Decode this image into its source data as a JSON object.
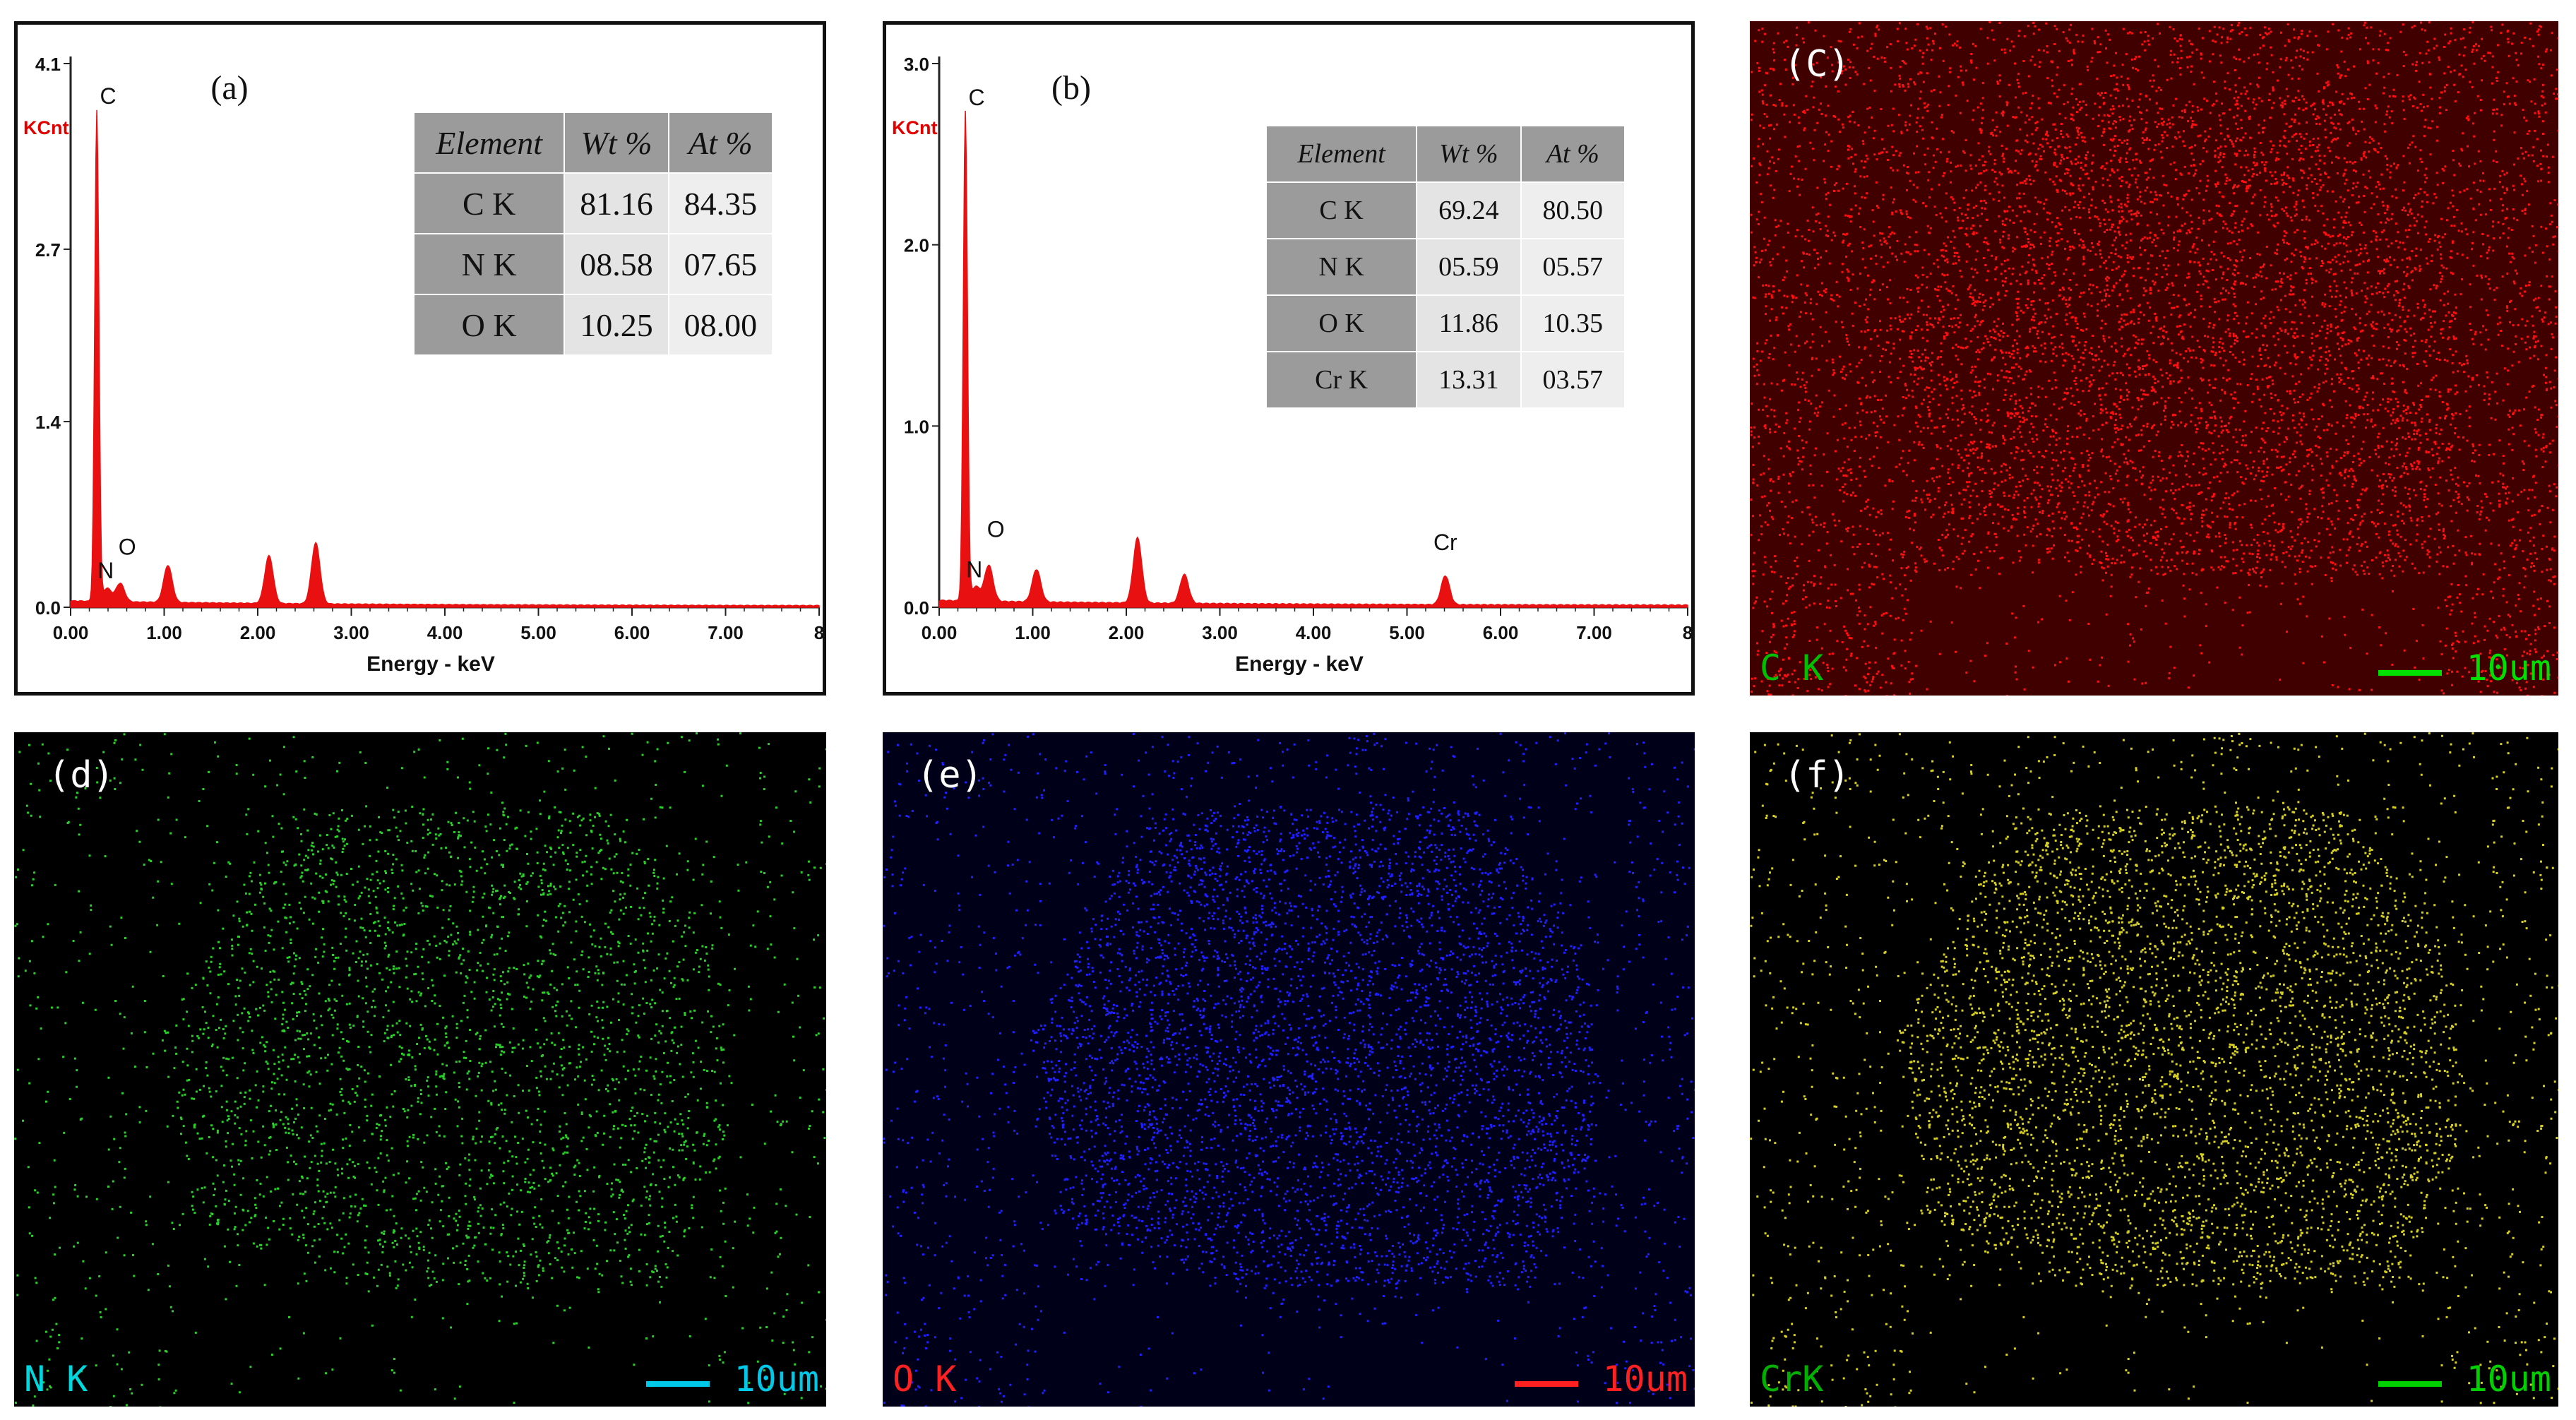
{
  "chart_data": [
    {
      "type": "line",
      "panel_label": "(a)",
      "xlabel": "Energy - keV",
      "ylabel": "KCnt",
      "xlim": [
        0,
        8
      ],
      "ylim": [
        0,
        4.1
      ],
      "x_ticks": [
        "0.00",
        "1.00",
        "2.00",
        "3.00",
        "4.00",
        "5.00",
        "6.00",
        "7.00",
        "8"
      ],
      "y_ticks": [
        {
          "value": 0,
          "label": "0.0"
        },
        {
          "value": 1.4,
          "label": "1.4"
        },
        {
          "value": 2.7,
          "label": "2.7"
        },
        {
          "value": 4.1,
          "label": "4.1"
        }
      ],
      "peaks": [
        {
          "label": "C",
          "x": 0.28,
          "y": 3.7
        },
        {
          "label": "N",
          "x": 0.39,
          "y": 0.1
        },
        {
          "label": "O",
          "x": 0.53,
          "y": 0.14
        },
        {
          "label": "",
          "x": 1.04,
          "y": 0.28
        },
        {
          "label": "",
          "x": 2.12,
          "y": 0.36
        },
        {
          "label": "",
          "x": 2.62,
          "y": 0.46
        }
      ],
      "table": {
        "headers": [
          "Element",
          "Wt %",
          "At %"
        ],
        "rows": [
          [
            "C K",
            "81.16",
            "84.35"
          ],
          [
            "N K",
            "08.58",
            "07.65"
          ],
          [
            "O K",
            "10.25",
            "08.00"
          ]
        ]
      }
    },
    {
      "type": "line",
      "panel_label": "(b)",
      "xlabel": "Energy - keV",
      "ylabel": "KCnt",
      "xlim": [
        0,
        8
      ],
      "ylim": [
        0,
        3.0
      ],
      "x_ticks": [
        "0.00",
        "1.00",
        "2.00",
        "3.00",
        "4.00",
        "5.00",
        "6.00",
        "7.00",
        "8"
      ],
      "y_ticks": [
        {
          "value": 0,
          "label": "0.0"
        },
        {
          "value": 1.0,
          "label": "1.0"
        },
        {
          "value": 2.0,
          "label": "2.0"
        },
        {
          "value": 3.0,
          "label": "3.0"
        }
      ],
      "peaks": [
        {
          "label": "C",
          "x": 0.28,
          "y": 2.7
        },
        {
          "label": "N",
          "x": 0.39,
          "y": 0.08
        },
        {
          "label": "O",
          "x": 0.53,
          "y": 0.2
        },
        {
          "label": "",
          "x": 1.04,
          "y": 0.18
        },
        {
          "label": "",
          "x": 2.12,
          "y": 0.36
        },
        {
          "label": "",
          "x": 2.62,
          "y": 0.16
        },
        {
          "label": "Cr",
          "x": 5.41,
          "y": 0.16
        }
      ],
      "table": {
        "headers": [
          "Element",
          "Wt %",
          "At %"
        ],
        "rows": [
          [
            "C K",
            "69.24",
            "80.50"
          ],
          [
            "N K",
            "05.59",
            "05.57"
          ],
          [
            "O K",
            "11.86",
            "10.35"
          ],
          [
            "Cr K",
            "13.31",
            "03.57"
          ]
        ]
      }
    }
  ],
  "maps": [
    {
      "label": "(C)",
      "element": "C K",
      "scale": "10um",
      "dot_color": "#ff1010",
      "bg_color": "#400000",
      "element_color": "#00c000",
      "scale_color": "#00e000",
      "density": 0.85
    },
    {
      "label": "(d)",
      "element": "N K",
      "scale": "10um",
      "dot_color": "#28d028",
      "bg_color": "#000000",
      "element_color": "#00d8e0",
      "scale_color": "#00c8e8",
      "density": 0.35
    },
    {
      "label": "(e)",
      "element": "O K",
      "scale": "10um",
      "dot_color": "#2020ff",
      "bg_color": "#000018",
      "element_color": "#ff2020",
      "scale_color": "#ff2020",
      "density": 0.6
    },
    {
      "label": "(f)",
      "element": "CrK",
      "scale": "10um",
      "dot_color": "#d8d020",
      "bg_color": "#000000",
      "element_color": "#00b000",
      "scale_color": "#00d000",
      "density": 0.55
    }
  ]
}
